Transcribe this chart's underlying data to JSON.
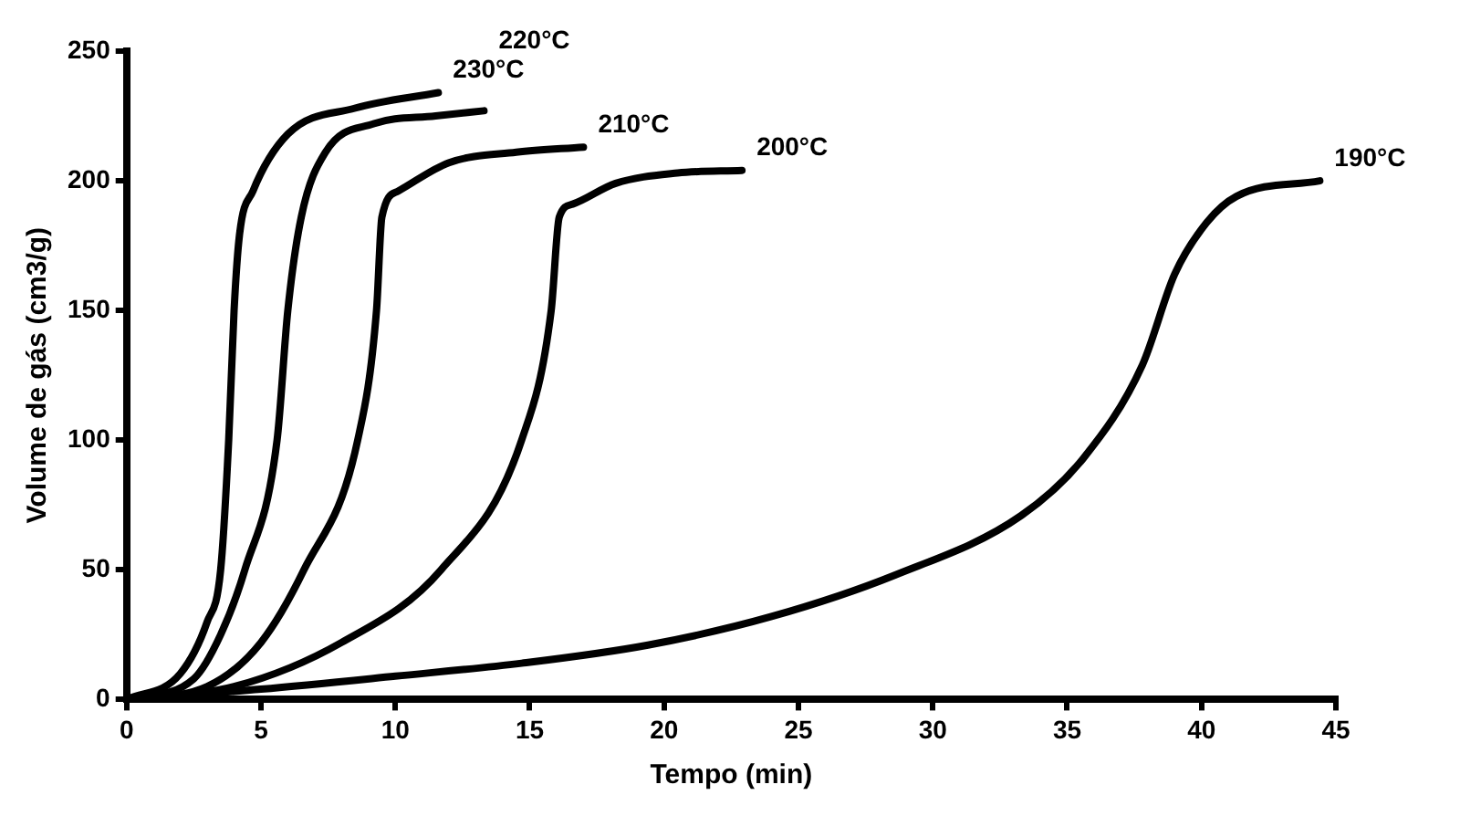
{
  "chart_data": {
    "type": "line",
    "xlabel": "Tempo (min)",
    "ylabel": "Volume de gás (cm3/g)",
    "xlim": [
      0,
      45
    ],
    "ylim": [
      0,
      250
    ],
    "xticks": [
      0,
      5,
      10,
      15,
      20,
      25,
      30,
      35,
      40,
      45
    ],
    "yticks": [
      0,
      50,
      100,
      150,
      200,
      250
    ],
    "grid": false,
    "legend": false,
    "marker": "none",
    "line_style": "solid",
    "series": [
      {
        "name": "230°C",
        "color": "#000000",
        "x": [
          0,
          2,
          3,
          3.5,
          3.8,
          4.0,
          4.2,
          4.7,
          6.0,
          8.5,
          11.6
        ],
        "values": [
          0,
          10,
          30,
          50,
          100,
          150,
          179,
          196,
          218,
          228,
          234
        ]
      },
      {
        "name": "220°C",
        "color": "#000000",
        "x": [
          0,
          2.5,
          3.5,
          4.4,
          5.6,
          6.0,
          6.5,
          7.4,
          9.2,
          11.5,
          13.3
        ],
        "values": [
          0,
          8,
          25,
          50,
          100,
          150,
          186,
          211,
          222,
          225,
          227
        ]
      },
      {
        "name": "210°C",
        "color": "#000000",
        "x": [
          0,
          3,
          5,
          6.6,
          8.6,
          9.3,
          9.5,
          10.1,
          12.0,
          14.5,
          17.0
        ],
        "values": [
          0,
          5,
          22,
          50,
          100,
          150,
          186,
          196,
          207,
          211,
          213
        ]
      },
      {
        "name": "200°C",
        "color": "#000000",
        "x": [
          0,
          4,
          8,
          11.7,
          14.7,
          15.8,
          16.1,
          16.6,
          18.2,
          20.5,
          22.9
        ],
        "values": [
          0,
          5,
          22,
          50,
          100,
          150,
          186,
          191,
          199,
          203,
          204
        ]
      },
      {
        "name": "190°C",
        "color": "#000000",
        "x": [
          0,
          5,
          10,
          14.7,
          19.4,
          24.0,
          28.6,
          33.3,
          35.6,
          37.8,
          39.0,
          40.2,
          41.3,
          44.4
        ],
        "values": [
          0,
          4,
          9,
          14,
          21,
          32,
          48,
          71,
          93,
          129,
          164,
          184,
          194,
          200
        ]
      }
    ]
  }
}
